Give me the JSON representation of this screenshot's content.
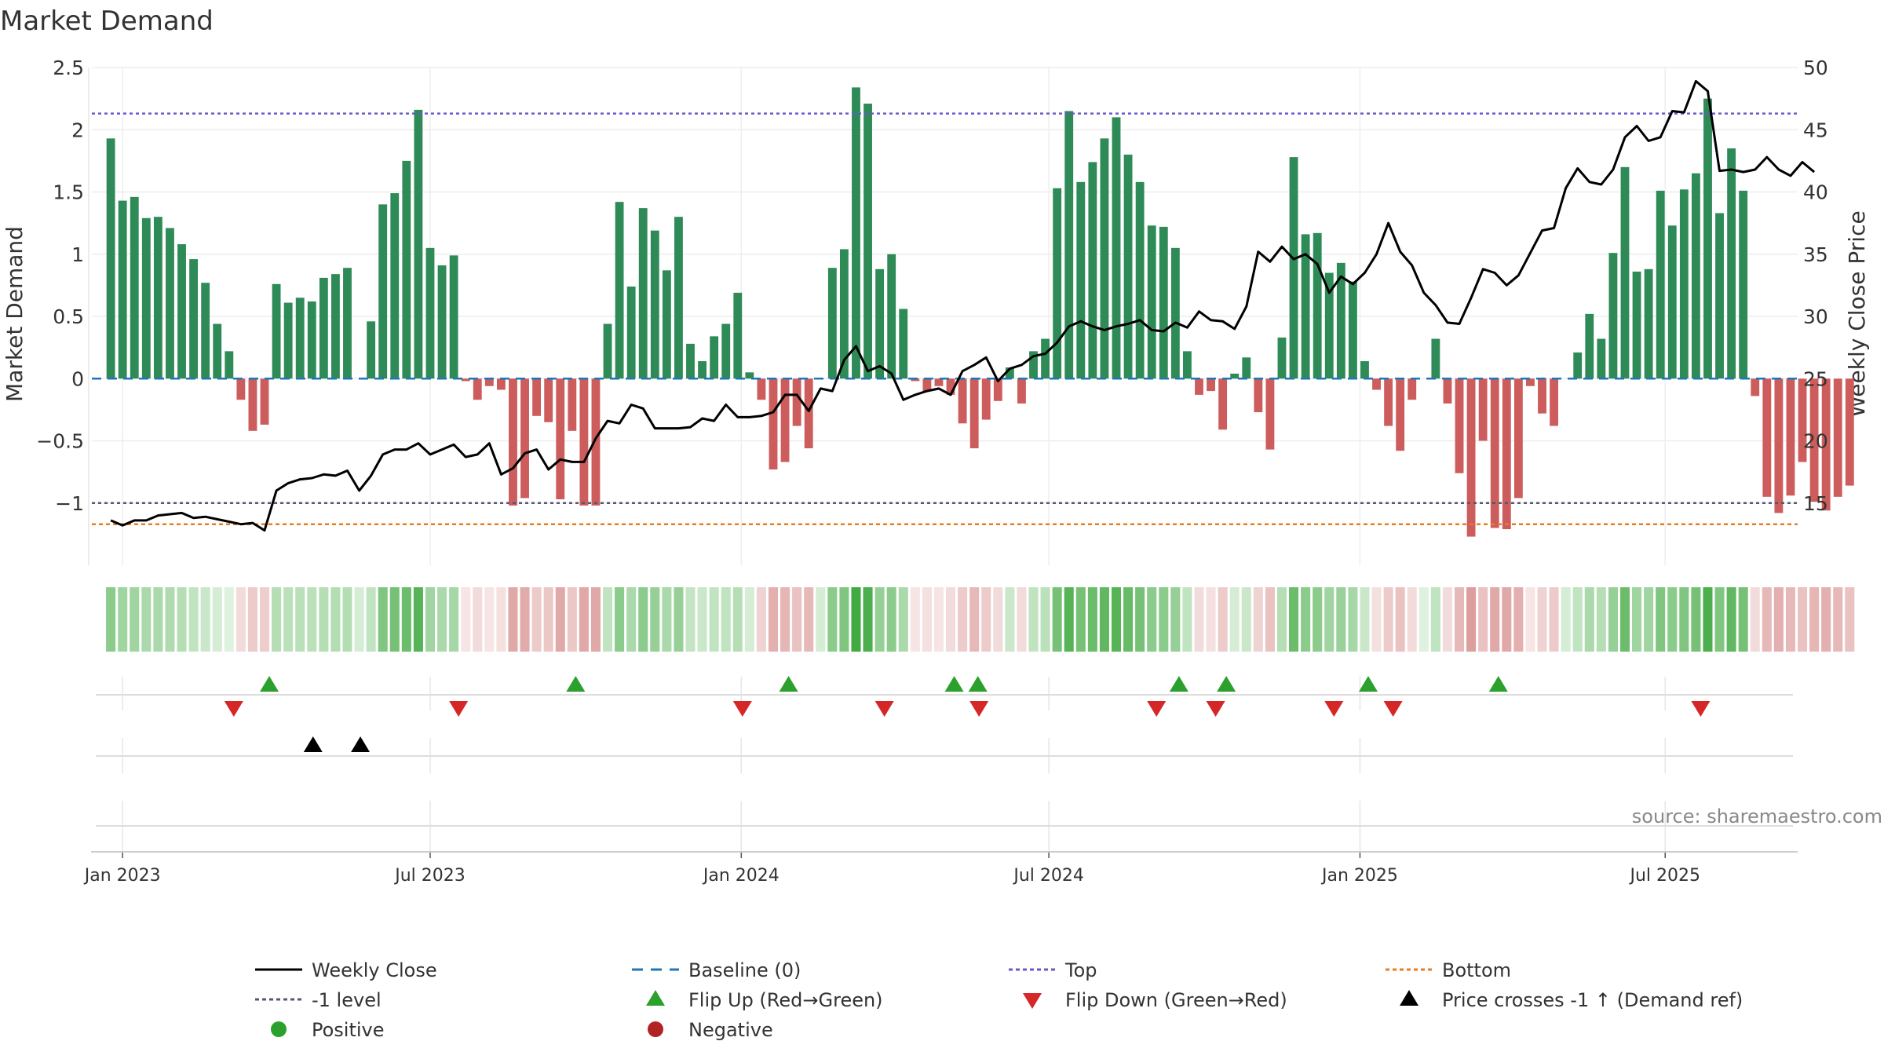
{
  "title": "Market Demand",
  "source": "source: sharemaestro.com",
  "colors": {
    "positive_bar": "#2e8b57",
    "negative_bar": "#cd5c5c",
    "price_line": "#000000",
    "baseline": "#1f77b4",
    "top_line": "#6a5acd",
    "minus1_line": "#555577",
    "bottom_line": "#e67e22",
    "flip_up": "#2ca02c",
    "flip_down": "#d62728",
    "cross_marker": "#000000",
    "positive_dot": "#2ca02c",
    "negative_dot": "#b22222"
  },
  "chart_data": {
    "type": "bar",
    "title": "Market Demand",
    "ylabel": "Market Demand",
    "y2label": "Weekly Close Price",
    "ylim": [
      -1.5,
      2.5
    ],
    "y2lim": [
      10,
      50
    ],
    "yticks": [
      2.5,
      2,
      1.5,
      1,
      0.5,
      0,
      -0.5,
      -1
    ],
    "ytick_labels": [
      "2.5",
      "2",
      "1.5",
      "1",
      "0.5",
      "0",
      "−0.5",
      "−1"
    ],
    "y2ticks": [
      50,
      45,
      40,
      35,
      30,
      25,
      20,
      15
    ],
    "x_start": "2022-12-26",
    "x_range_weeks": [
      -1.6,
      142.6
    ],
    "week_step": 1,
    "xticks": [
      {
        "label": "Jan 2023",
        "week": 1
      },
      {
        "label": "Jul 2023",
        "week": 27
      },
      {
        "label": "Jan 2024",
        "week": 53.3
      },
      {
        "label": "Jul 2024",
        "week": 79.3
      },
      {
        "label": "Jan 2025",
        "week": 105.6
      },
      {
        "label": "Jul 2025",
        "week": 131.4
      }
    ],
    "reference_lines": {
      "baseline": 0,
      "top": 2.13,
      "minus1": -1,
      "bottom": -1.17
    },
    "demand": [
      1.93,
      1.43,
      1.46,
      1.29,
      1.3,
      1.21,
      1.08,
      0.96,
      0.77,
      0.44,
      0.22,
      -0.17,
      -0.42,
      -0.37,
      0.76,
      0.61,
      0.65,
      0.62,
      0.81,
      0.84,
      0.89,
      0.0,
      0.46,
      1.4,
      1.49,
      1.75,
      2.16,
      1.05,
      0.91,
      0.99,
      -0.02,
      -0.17,
      -0.06,
      -0.09,
      -1.02,
      -0.96,
      -0.3,
      -0.35,
      -0.97,
      -0.42,
      -1.02,
      -1.02,
      0.44,
      1.42,
      0.74,
      1.37,
      1.19,
      0.87,
      1.3,
      0.28,
      0.14,
      0.34,
      0.44,
      0.69,
      0.05,
      -0.17,
      -0.73,
      -0.67,
      -0.38,
      -0.56,
      0.0,
      0.89,
      1.04,
      2.34,
      2.21,
      0.88,
      1.0,
      0.56,
      -0.02,
      -0.1,
      -0.06,
      -0.13,
      -0.36,
      -0.56,
      -0.33,
      -0.18,
      0.09,
      -0.2,
      0.22,
      0.32,
      1.53,
      2.15,
      1.58,
      1.74,
      1.93,
      2.1,
      1.8,
      1.58,
      1.23,
      1.22,
      1.05,
      0.22,
      -0.13,
      -0.1,
      -0.41,
      0.04,
      0.17,
      -0.27,
      -0.57,
      0.33,
      1.78,
      1.16,
      1.17,
      0.85,
      0.93,
      0.78,
      0.14,
      -0.09,
      -0.38,
      -0.58,
      -0.17,
      0.0,
      0.32,
      -0.2,
      -0.76,
      -1.27,
      -0.5,
      -1.2,
      -1.21,
      -0.96,
      -0.06,
      -0.28,
      -0.38,
      0.0,
      0.21,
      0.52,
      0.32,
      1.01,
      1.7,
      0.86,
      0.88,
      1.51,
      1.23,
      1.52,
      1.65,
      2.25,
      1.33,
      1.85,
      1.51,
      -0.14,
      -0.95,
      -1.08,
      -0.94,
      -0.67,
      -0.99,
      -1.06,
      -0.95,
      -0.86
    ],
    "price": [
      13.6,
      13.2,
      13.6,
      13.6,
      14.0,
      14.1,
      14.2,
      13.8,
      13.9,
      13.7,
      13.5,
      13.3,
      13.4,
      12.8,
      16.0,
      16.6,
      16.9,
      17.0,
      17.3,
      17.2,
      17.6,
      16.0,
      17.2,
      18.9,
      19.3,
      19.3,
      19.8,
      18.9,
      19.3,
      19.7,
      18.7,
      18.9,
      19.8,
      17.3,
      17.8,
      19.0,
      19.3,
      17.7,
      18.5,
      18.3,
      18.3,
      20.2,
      21.6,
      21.4,
      22.9,
      22.6,
      21.0,
      21.0,
      21.0,
      21.1,
      21.8,
      21.6,
      22.9,
      21.9,
      21.9,
      22.0,
      22.3,
      23.7,
      23.7,
      22.4,
      24.2,
      24.0,
      26.5,
      27.6,
      25.6,
      26.0,
      25.4,
      23.3,
      23.7,
      24.0,
      24.2,
      23.7,
      25.6,
      26.1,
      26.7,
      24.8,
      25.8,
      26.1,
      26.8,
      27.0,
      27.9,
      29.2,
      29.6,
      29.2,
      28.9,
      29.2,
      29.4,
      29.7,
      28.9,
      28.8,
      29.5,
      29.1,
      30.4,
      29.7,
      29.6,
      29.0,
      30.8,
      35.2,
      34.4,
      35.6,
      34.6,
      35.0,
      34.2,
      31.9,
      33.2,
      32.6,
      33.5,
      35.0,
      37.5,
      35.2,
      34.1,
      31.9,
      30.9,
      29.5,
      29.4,
      31.5,
      33.8,
      33.5,
      32.5,
      33.3,
      35.1,
      36.9,
      37.1,
      40.3,
      41.9,
      40.8,
      40.6,
      41.8,
      44.4,
      45.3,
      44.1,
      44.4,
      46.5,
      46.4,
      48.9,
      48.1,
      41.7,
      41.8,
      41.6,
      41.8,
      42.8,
      41.8,
      41.3,
      42.4,
      41.6
    ],
    "heat_levels": [
      0.55,
      0.45,
      0.45,
      0.4,
      0.4,
      0.38,
      0.35,
      0.3,
      0.25,
      0.2,
      0.15,
      0.2,
      0.3,
      0.28,
      0.35,
      0.32,
      0.33,
      0.32,
      0.35,
      0.36,
      0.36,
      0.2,
      0.3,
      0.6,
      0.65,
      0.7,
      0.8,
      0.45,
      0.4,
      0.42,
      0.15,
      0.2,
      0.15,
      0.18,
      0.5,
      0.48,
      0.3,
      0.32,
      0.5,
      0.32,
      0.5,
      0.5,
      0.3,
      0.55,
      0.4,
      0.55,
      0.5,
      0.4,
      0.5,
      0.28,
      0.25,
      0.3,
      0.3,
      0.35,
      0.2,
      0.25,
      0.45,
      0.42,
      0.35,
      0.4,
      0.2,
      0.55,
      0.6,
      0.9,
      0.85,
      0.5,
      0.55,
      0.4,
      0.15,
      0.18,
      0.15,
      0.2,
      0.3,
      0.4,
      0.3,
      0.2,
      0.25,
      0.2,
      0.3,
      0.32,
      0.65,
      0.8,
      0.65,
      0.7,
      0.75,
      0.8,
      0.72,
      0.65,
      0.55,
      0.55,
      0.5,
      0.3,
      0.2,
      0.18,
      0.3,
      0.2,
      0.25,
      0.25,
      0.35,
      0.35,
      0.7,
      0.55,
      0.55,
      0.45,
      0.48,
      0.42,
      0.25,
      0.18,
      0.3,
      0.35,
      0.2,
      0.15,
      0.3,
      0.2,
      0.4,
      0.55,
      0.35,
      0.5,
      0.5,
      0.45,
      0.15,
      0.25,
      0.3,
      0.2,
      0.3,
      0.4,
      0.35,
      0.5,
      0.7,
      0.45,
      0.45,
      0.6,
      0.55,
      0.6,
      0.65,
      0.85,
      0.6,
      0.75,
      0.65,
      0.2,
      0.4,
      0.45,
      0.4,
      0.35,
      0.42,
      0.45,
      0.4,
      0.35
    ],
    "flip_up_weeks": [
      13.4,
      39.3,
      57.3,
      71.3,
      73.3,
      90.3,
      94.3,
      106.3,
      117.3
    ],
    "flip_down_weeks": [
      10.4,
      29.4,
      53.4,
      65.4,
      73.4,
      88.4,
      93.4,
      103.4,
      108.4,
      134.4
    ],
    "price_cross_weeks": [
      17.1,
      21.1
    ],
    "legend": [
      {
        "label": "Weekly Close",
        "marker": "line-solid"
      },
      {
        "label": "Baseline (0)",
        "marker": "line-dashed"
      },
      {
        "label": "Top",
        "marker": "line-dotted-top"
      },
      {
        "label": "Bottom",
        "marker": "line-dotted-bottom"
      },
      {
        "label": "-1 level",
        "marker": "line-dotted-minus1"
      },
      {
        "label": "Flip Up (Red→Green)",
        "marker": "triangle-up-green"
      },
      {
        "label": "Flip Down (Green→Red)",
        "marker": "triangle-down-red"
      },
      {
        "label": "Price crosses -1 ↑ (Demand ref)",
        "marker": "triangle-up-black"
      },
      {
        "label": "Positive",
        "marker": "dot-green"
      },
      {
        "label": "Negative",
        "marker": "dot-red"
      }
    ]
  }
}
